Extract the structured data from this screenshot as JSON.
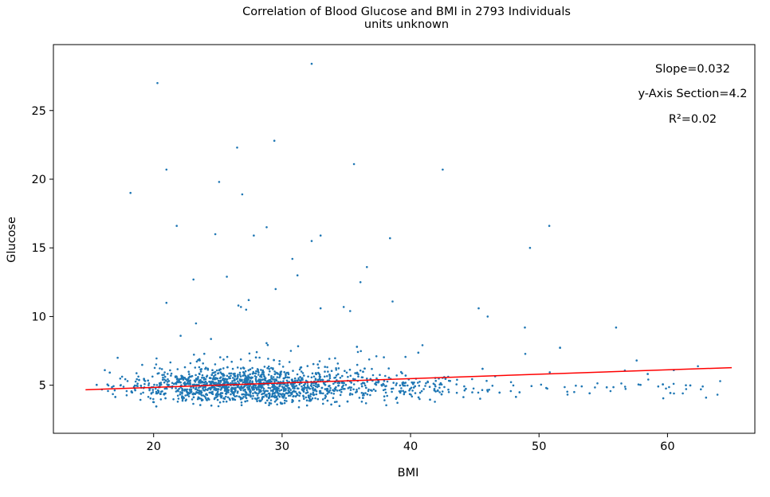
{
  "chart_data": {
    "type": "scatter",
    "title": "Correlation of Blood Glucose and BMI in 2793 Individuals",
    "subtitle": "units unknown",
    "xlabel": "BMI",
    "ylabel": "Glucose",
    "xlim": [
      12.2,
      66.8
    ],
    "ylim": [
      1.5,
      29.8
    ],
    "xticks": [
      20,
      30,
      40,
      50,
      60
    ],
    "yticks": [
      5,
      10,
      15,
      20,
      25
    ],
    "grid": false,
    "colors": {
      "points": "#1f77b4",
      "fit": "#ff0000"
    },
    "annotations": [
      "Slope=0.032",
      "y-Axis Section=4.2",
      "R²=0.02"
    ],
    "regression": {
      "slope": 0.032,
      "intercept": 4.2,
      "x": [
        14.7,
        65.0
      ]
    },
    "points": {
      "x": [
        20.3,
        32.3,
        29.4,
        26.5,
        18.2,
        21.0,
        25.1,
        26.9,
        21.8,
        24.8,
        28.8,
        27.8,
        33.0,
        32.3,
        35.6,
        42.5,
        38.4,
        50.8,
        49.3,
        30.8,
        36.6,
        31.2,
        25.7,
        23.1,
        29.5,
        36.1,
        27.4,
        26.8,
        27.2,
        21.0,
        26.6,
        38.6,
        34.8,
        33.0,
        35.3,
        45.3,
        46.0,
        56.0,
        48.9,
        57.6,
        22.1,
        23.3,
        16.2,
        17.2,
        60.5,
        62.6,
        63.0,
        64.1
      ],
      "y": [
        27.0,
        28.4,
        22.8,
        22.3,
        19.0,
        20.7,
        19.8,
        18.9,
        16.6,
        16.0,
        16.5,
        15.9,
        15.9,
        15.5,
        21.1,
        20.7,
        15.7,
        16.6,
        15.0,
        14.2,
        13.6,
        13.0,
        12.9,
        12.7,
        12.0,
        12.5,
        11.2,
        10.7,
        10.5,
        11.0,
        10.8,
        11.1,
        10.7,
        10.6,
        10.4,
        10.6,
        10.0,
        9.2,
        9.2,
        6.8,
        8.6,
        9.5,
        6.1,
        7.0,
        4.4,
        4.7,
        4.1,
        5.3
      ]
    },
    "cluster": {
      "description": "dense band of 2793 total points",
      "x_range": [
        15.5,
        47.0
      ],
      "y_center": 4.9,
      "y_spread": 0.6
    }
  }
}
